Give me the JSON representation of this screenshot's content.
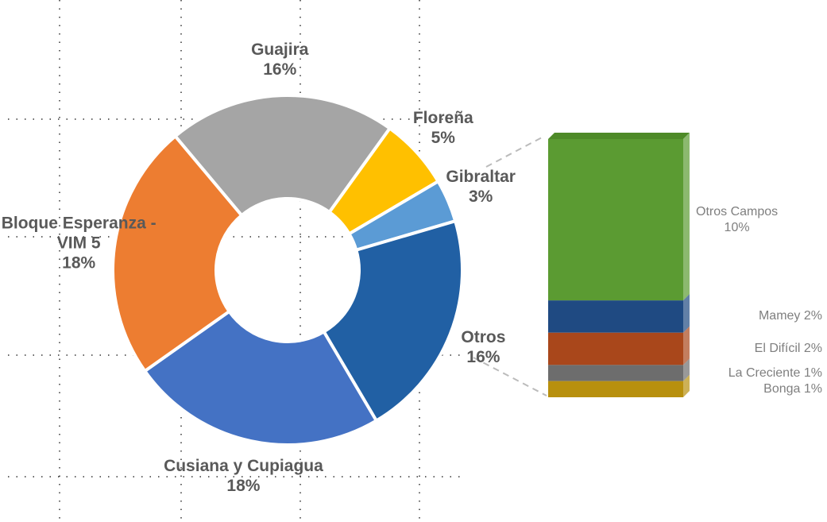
{
  "chart_data": {
    "type": "pie",
    "donut": true,
    "categories": [
      "Guajira",
      "Floreña",
      "Gibraltar",
      "Otros",
      "Cusiana y Cupiagua",
      "Bloque Esperanza -VIM 5"
    ],
    "values": [
      16,
      5,
      3,
      16,
      18,
      18
    ],
    "value_labels": [
      "16%",
      "5%",
      "3%",
      "16%",
      "18%",
      "18%"
    ],
    "colors": [
      "#a5a5a5",
      "#ffc000",
      "#5b9bd5",
      "#2160a4",
      "#4472c4",
      "#ed7d31"
    ],
    "bar_of_pie": {
      "categories": [
        "Otros Campos",
        "Mamey",
        "El Difícil",
        "La Creciente",
        "Bonga"
      ],
      "values": [
        10,
        2,
        2,
        1,
        1
      ],
      "value_labels": [
        "10%",
        "2%",
        "2%",
        "1%",
        "1%"
      ],
      "colors": [
        "#5b9b32",
        "#1f4a82",
        "#a9471b",
        "#6d6d6d",
        "#b8900e"
      ]
    }
  }
}
